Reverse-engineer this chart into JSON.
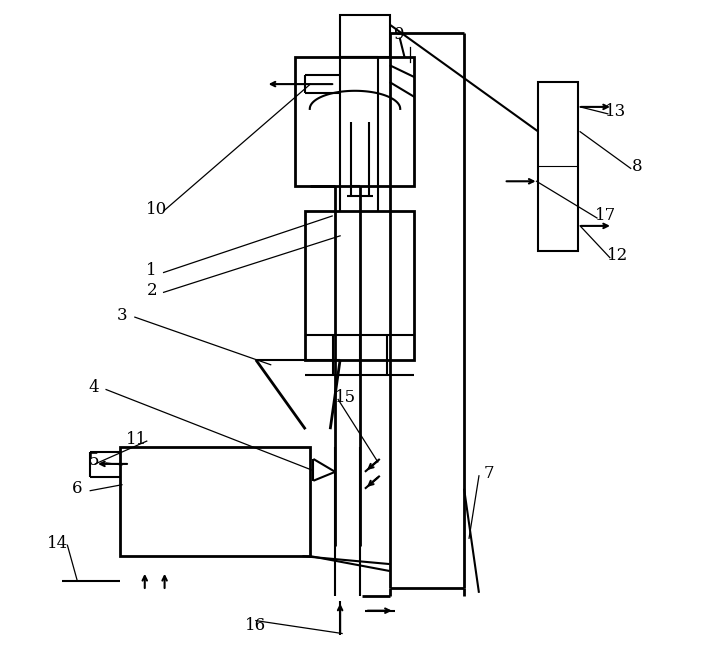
{
  "line_color": "#000000",
  "bg_color": "#ffffff",
  "lw": 1.5,
  "lw_thick": 2.0,
  "figsize": [
    7.09,
    6.68
  ],
  "dpi": 100
}
